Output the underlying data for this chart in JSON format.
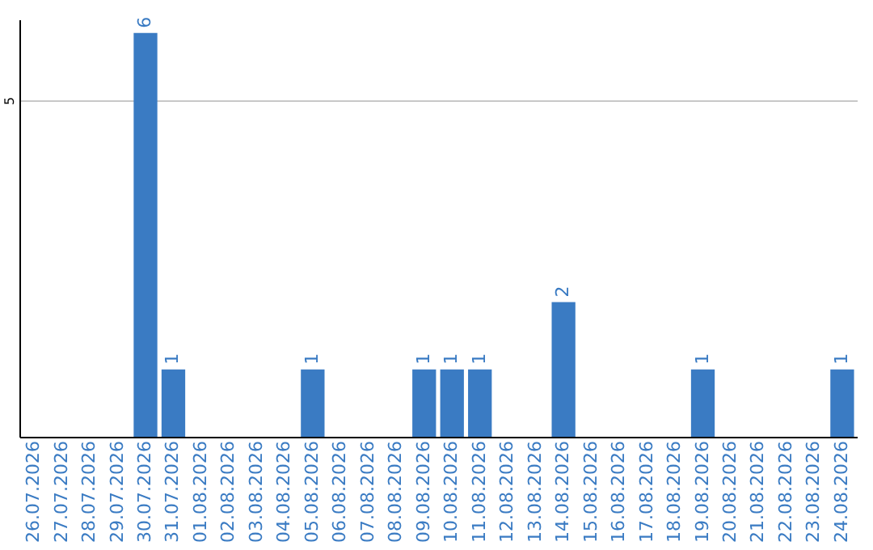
{
  "chart_data": {
    "type": "bar",
    "categories": [
      "26.07.2026",
      "27.07.2026",
      "28.07.2026",
      "29.07.2026",
      "30.07.2026",
      "31.07.2026",
      "01.08.2026",
      "02.08.2026",
      "03.08.2026",
      "04.08.2026",
      "05.08.2026",
      "06.08.2026",
      "07.08.2026",
      "08.08.2026",
      "09.08.2026",
      "10.08.2026",
      "11.08.2026",
      "12.08.2026",
      "13.08.2026",
      "14.08.2026",
      "15.08.2026",
      "16.08.2026",
      "17.08.2026",
      "18.08.2026",
      "19.08.2026",
      "20.08.2026",
      "21.08.2026",
      "22.08.2026",
      "23.08.2026",
      "24.08.2026"
    ],
    "values": [
      0,
      0,
      0,
      0,
      6,
      1,
      0,
      0,
      0,
      0,
      1,
      0,
      0,
      0,
      1,
      1,
      1,
      0,
      0,
      2,
      0,
      0,
      0,
      0,
      1,
      0,
      0,
      0,
      0,
      1
    ],
    "value_labels": [
      null,
      null,
      null,
      null,
      "6",
      "1",
      null,
      null,
      null,
      null,
      "1",
      null,
      null,
      null,
      "1",
      "1",
      "1",
      null,
      null,
      "2",
      null,
      null,
      null,
      null,
      "1",
      null,
      null,
      null,
      null,
      "1"
    ],
    "color": "#3a7bc3",
    "ylim": [
      0,
      6.2
    ],
    "yticks": [
      5
    ],
    "grid": "y"
  }
}
